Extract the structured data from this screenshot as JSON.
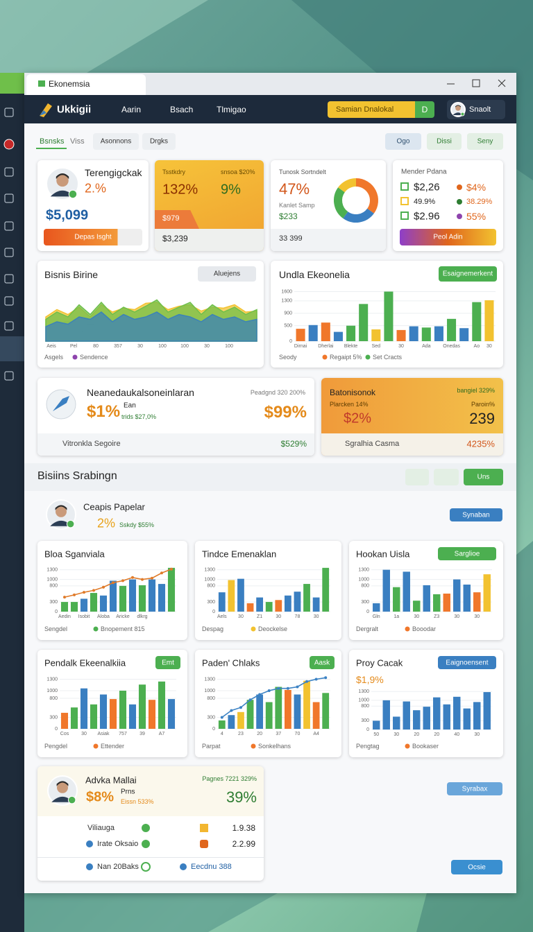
{
  "browser": {
    "tab": "Ekonemsia"
  },
  "header": {
    "logo": "Ukkigii",
    "nav": [
      "Aarin",
      "Bsach",
      "Tlmigao"
    ],
    "search": "Samian Dnalokal",
    "search_button": "D",
    "user": "Snaolt"
  },
  "tabs": [
    "Bsnsks",
    "Viss",
    "Asonnons",
    "Drgks"
  ],
  "actions": [
    "Ogo",
    "Dissi",
    "Seny"
  ],
  "summary": {
    "profile": {
      "title": "Terengigckak",
      "change": "2.%",
      "amount": "$5,099",
      "button": "Depas Isght"
    },
    "highlight": {
      "label": "Tsstkdry",
      "note": "snsoa $20%",
      "left": "132%",
      "right": "9%",
      "tag": "$979",
      "footer": "$3,239"
    },
    "donut": {
      "title": "Tunosk Sortndelt",
      "value": "47%",
      "label": "Kanlet Samp",
      "amount": "$233",
      "footer": "33 399",
      "slices": [
        {
          "value": 35,
          "color": "#f0772b"
        },
        {
          "value": 25,
          "color": "#3a7fc1"
        },
        {
          "value": 25,
          "color": "#4caf50"
        },
        {
          "value": 15,
          "color": "#f2c230"
        }
      ]
    },
    "list": {
      "title": "Mender Pdana",
      "rows": [
        [
          "$2,26",
          "$4%"
        ],
        [
          "49.9%",
          "38.29%"
        ],
        [
          "$2.96",
          "55%"
        ]
      ],
      "button": "Peol Adin"
    }
  },
  "area_chart": {
    "title": "Bisnis Birine",
    "button": "Aluejens",
    "ylim": [
      0,
      100
    ],
    "categories": [
      "Aeis",
      null,
      "Pel",
      null,
      "80",
      null,
      "357",
      null,
      "30",
      null,
      "100",
      null,
      "100",
      null,
      "30",
      null,
      "100",
      null,
      null,
      null
    ],
    "bars": {
      "color": "#dde3ea",
      "values": [
        0,
        15,
        40,
        20,
        35,
        50,
        30,
        55,
        45,
        0,
        0,
        0,
        0,
        0,
        0,
        0,
        0,
        0,
        0,
        0
      ]
    },
    "series": [
      {
        "color": "#f2c230",
        "values": [
          50,
          65,
          55,
          70,
          50,
          75,
          60,
          68,
          65,
          78,
          80,
          65,
          72,
          75,
          62,
          70,
          68,
          75,
          60,
          62
        ]
      },
      {
        "color": "#6fbf4a",
        "values": [
          45,
          60,
          50,
          75,
          55,
          80,
          55,
          70,
          60,
          72,
          85,
          60,
          70,
          80,
          55,
          75,
          60,
          70,
          55,
          65
        ]
      },
      {
        "color": "#3b82b8",
        "values": [
          30,
          40,
          35,
          50,
          45,
          60,
          40,
          55,
          45,
          50,
          60,
          45,
          55,
          50,
          40,
          55,
          45,
          50,
          40,
          45
        ]
      }
    ],
    "legend": [
      {
        "name": "Asgels"
      },
      {
        "name": "Sendence",
        "color": "#8e44ad"
      }
    ]
  },
  "bar_chart": {
    "title": "Undla Ekeonelia",
    "button": "Esaignemerkent",
    "ylim": [
      0,
      1700
    ],
    "yticks": [
      0,
      500,
      900,
      1300,
      1600
    ],
    "categories": [
      "Dirnai",
      null,
      "Dherlai",
      null,
      "Blekte",
      null,
      "Sed",
      null,
      "30",
      null,
      "Ada",
      null,
      "Onedas",
      null,
      "Ao",
      "30"
    ],
    "values": [
      400,
      520,
      600,
      300,
      500,
      1200,
      380,
      1600,
      360,
      480,
      440,
      480,
      720,
      420,
      1260,
      1320
    ],
    "colors": [
      "#f0772b",
      "#3a7fc1",
      "#f0772b",
      "#3a7fc1",
      "#4caf50",
      "#4caf50",
      "#f2c230",
      "#4caf50",
      "#f0772b",
      "#3a7fc1",
      "#4caf50",
      "#3a7fc1",
      "#4caf50",
      "#3a7fc1",
      "#4caf50",
      "#f2c230"
    ],
    "legend": [
      {
        "name": "Seody"
      },
      {
        "name": "Regaipt 5%",
        "color": "#f0772b"
      },
      {
        "name": "Set Cracts",
        "color": "#4caf50"
      }
    ]
  },
  "stats": {
    "left": {
      "title": "Neanedaukalsoneinlaran",
      "note": "Peadgnd 320 200%",
      "big": "$1%",
      "small": "Ean",
      "sub": "trids $27,0%",
      "right": "$99%",
      "footer": "Vitronkla Segoire",
      "footer_value": "$529%"
    },
    "right": {
      "title": "Batonisonok",
      "note": "bangiel 329%",
      "sub": "Plarcken 14%",
      "sub2": "Paroin%",
      "big": "$2%",
      "big2": "239",
      "footer": "Sgralhia Casma",
      "footer_value": "4235%"
    }
  },
  "section": {
    "title": "Bisiins Srabingn",
    "button": "Uns"
  },
  "person": {
    "name": "Ceapis Papelar",
    "pct": "2%",
    "sub": "Sskdy $55%",
    "button": "Synaban"
  },
  "mini": [
    {
      "title": "Bloa Sganviala",
      "ylim": [
        0,
        1400
      ],
      "yticks": [
        0,
        300,
        800,
        1000,
        1300
      ],
      "categories": [
        "Aedin",
        null,
        "Isobit",
        null,
        "Aloba",
        null,
        "Aricke",
        null,
        "dlkrg",
        null,
        null,
        null
      ],
      "values": [
        300,
        300,
        400,
        580,
        500,
        960,
        800,
        1000,
        820,
        1000,
        860,
        1360
      ],
      "colors": [
        "#4caf50",
        "#4caf50",
        "#3a7fc1",
        "#4caf50",
        "#3a7fc1",
        "#3a7fc1",
        "#4caf50",
        "#3a7fc1",
        "#4caf50",
        "#3a7fc1",
        "#3a7fc1",
        "#4caf50"
      ],
      "line": [
        450,
        520,
        600,
        660,
        760,
        900,
        960,
        1060,
        1000,
        1040,
        1200,
        1320
      ],
      "line_color": "#e07b2a",
      "legend": [
        {
          "name": "Sengdel"
        },
        {
          "name": "Bnopement 815",
          "color": "#4caf50"
        }
      ]
    },
    {
      "title": "Tindce Emenaklan",
      "ylim": [
        0,
        1400
      ],
      "yticks": [
        0,
        300,
        800,
        1000,
        1300
      ],
      "categories": [
        "Aels",
        null,
        "30",
        null,
        "Z1",
        null,
        "30",
        null,
        "78",
        null,
        "30",
        null
      ],
      "values": [
        600,
        980,
        1020,
        260,
        440,
        300,
        360,
        500,
        620,
        860,
        440,
        1360
      ],
      "colors": [
        "#3a7fc1",
        "#f2c230",
        "#3a7fc1",
        "#f0772b",
        "#3a7fc1",
        "#4caf50",
        "#f0772b",
        "#3a7fc1",
        "#3a7fc1",
        "#4caf50",
        "#3a7fc1",
        "#4caf50"
      ],
      "legend": [
        {
          "name": "Despag"
        },
        {
          "name": "Deockelse",
          "color": "#f2c230"
        }
      ]
    },
    {
      "title": "Hookan Uisla",
      "button": "Sarglioe",
      "ylim": [
        0,
        1400
      ],
      "yticks": [
        0,
        300,
        800,
        1000,
        1300
      ],
      "categories": [
        "Gln",
        null,
        "1a",
        null,
        "30",
        null,
        "Z3",
        null,
        "30",
        null,
        "30",
        null
      ],
      "values": [
        260,
        1300,
        760,
        1240,
        340,
        820,
        540,
        560,
        1000,
        840,
        600,
        1160
      ],
      "colors": [
        "#3a7fc1",
        "#3a7fc1",
        "#4caf50",
        "#3a7fc1",
        "#4caf50",
        "#3a7fc1",
        "#4caf50",
        "#f0772b",
        "#3a7fc1",
        "#3a7fc1",
        "#f0772b",
        "#f2c230"
      ],
      "legend": [
        {
          "name": "Dergralt"
        },
        {
          "name": "Booodar",
          "color": "#f0772b"
        }
      ]
    },
    {
      "title": "Pendalk Ekeenalkiia",
      "button": "Emt",
      "ylim": [
        0,
        1400
      ],
      "yticks": [
        0,
        300,
        800,
        1000,
        1300
      ],
      "categories": [
        "Cos",
        null,
        "30",
        null,
        "Asiak",
        null,
        "757",
        null,
        "39",
        null,
        "A7",
        null
      ],
      "values": [
        420,
        560,
        1060,
        640,
        900,
        780,
        1000,
        640,
        1160,
        760,
        1240,
        780
      ],
      "colors": [
        "#f0772b",
        "#4caf50",
        "#3a7fc1",
        "#4caf50",
        "#3a7fc1",
        "#f0772b",
        "#4caf50",
        "#3a7fc1",
        "#4caf50",
        "#f0772b",
        "#4caf50",
        "#3a7fc1"
      ],
      "legend": [
        {
          "name": "Pengdel"
        },
        {
          "name": "Ettender",
          "color": "#f0772b"
        }
      ]
    },
    {
      "title": "Paden' Chlaks",
      "button": "Aask",
      "ylim": [
        0,
        1400
      ],
      "yticks": [
        0,
        300,
        800,
        1000,
        1300
      ],
      "categories": [
        "4",
        null,
        "23",
        null,
        "20",
        null,
        "37",
        null,
        "70",
        null,
        "A4",
        null
      ],
      "values": [
        220,
        360,
        440,
        760,
        900,
        700,
        1100,
        1020,
        900,
        1260,
        700,
        940
      ],
      "colors": [
        "#4caf50",
        "#3a7fc1",
        "#f2c230",
        "#4caf50",
        "#3a7fc1",
        "#4caf50",
        "#4caf50",
        "#f0772b",
        "#3a7fc1",
        "#f2c230",
        "#f0772b",
        "#4caf50"
      ],
      "line": [
        300,
        480,
        560,
        760,
        900,
        1000,
        1060,
        1060,
        1100,
        1240,
        1300,
        1340
      ],
      "line_color": "#3b82c4",
      "legend": [
        {
          "name": "Parpat"
        },
        {
          "name": "Sonkelhans",
          "color": "#f0772b"
        }
      ]
    },
    {
      "title": "Proy Cacak",
      "button": "Eaignoensent",
      "sub": "$1,9%",
      "ylim": [
        0,
        1400
      ],
      "yticks": [
        0,
        300,
        800,
        1000,
        1300
      ],
      "categories": [
        "50",
        null,
        "30",
        null,
        "20",
        null,
        "20",
        null,
        "40",
        null,
        "30",
        null
      ],
      "values": [
        300,
        1000,
        440,
        960,
        660,
        780,
        1100,
        860,
        1120,
        720,
        940,
        1280
      ],
      "colors": [
        "#3a7fc1",
        "#3a7fc1",
        "#3a7fc1",
        "#3a7fc1",
        "#3a7fc1",
        "#3a7fc1",
        "#3a7fc1",
        "#3a7fc1",
        "#3a7fc1",
        "#3a7fc1",
        "#3a7fc1",
        "#3a7fc1"
      ],
      "legend": [
        {
          "name": "Pengtag"
        },
        {
          "name": "Bookaser",
          "color": "#f0772b"
        }
      ]
    }
  ],
  "account": {
    "name": "Advka Mallai",
    "note": "Pagnes 7221 329%",
    "pct": "$8%",
    "sub": "Prns",
    "sub2": "Eissn 533%",
    "big": "39%",
    "rows": [
      {
        "label": "Viliauga",
        "value": "1.9.38"
      },
      {
        "label": "Irate Oksaio",
        "value": "2.2.99"
      }
    ],
    "footer": [
      "Nan 20Baks",
      "Eecdnu 388"
    ]
  },
  "side_buttons": [
    "Syrabax",
    "Ocsie"
  ]
}
